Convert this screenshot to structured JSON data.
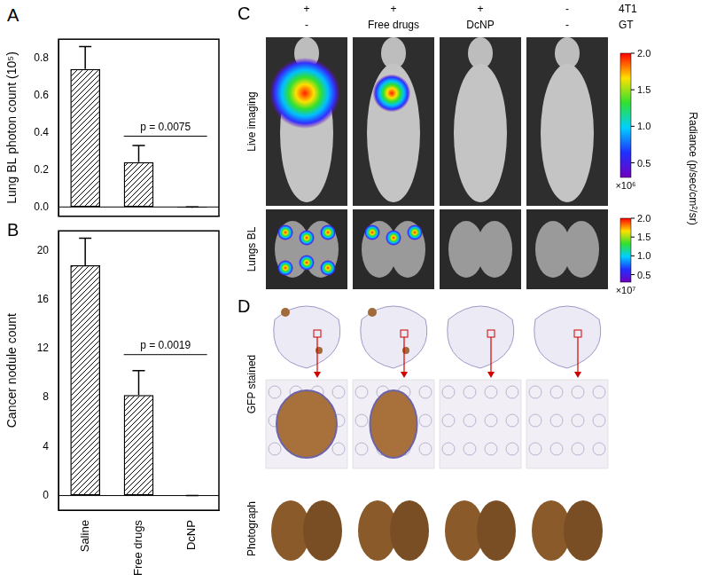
{
  "chart_data": [
    {
      "type": "bar",
      "title": "A",
      "categories": [
        null,
        null,
        null
      ],
      "values": [
        0.74,
        0.24,
        -0.005
      ],
      "errors": [
        0.12,
        0.09,
        0.005
      ],
      "color": "#000000",
      "y_label": "Lung BL photon count (10⁵)",
      "ylim": [
        -0.05,
        0.9
      ],
      "yticks": [
        {
          "value": 0,
          "label": "0.0"
        },
        0.2,
        0.4,
        0.6,
        0.8
      ],
      "tick_labels": "y",
      "grid": false,
      "annotations": [
        {
          "text": "p = 0.0075",
          "from": 1,
          "to": 2,
          "value": 0.38
        }
      ]
    },
    {
      "type": "bar",
      "title": "B",
      "categories": [
        "Saline",
        "Free drugs",
        "DcNP"
      ],
      "values": [
        18.8,
        8.2,
        0
      ],
      "errors": [
        2.2,
        2.0,
        0
      ],
      "color": "#000000",
      "y_label": "Cancer nodule count",
      "ylim": [
        -1.2,
        21.6
      ],
      "yticks": [
        0,
        4,
        8,
        12,
        16,
        20
      ],
      "grid": false,
      "annotations": [
        {
          "text": "p = 0.0019",
          "from": 1,
          "to": 2,
          "value": 11.5
        }
      ]
    }
  ],
  "panels": [
    {
      "label": "C",
      "conditions": {
        "rows": [
          "4T1",
          "GT"
        ],
        "columns": [
          [
            "+",
            "-"
          ],
          [
            "+",
            "Free drugs"
          ],
          [
            "+",
            "DcNP"
          ],
          [
            "-",
            "-"
          ]
        ]
      },
      "image_rows": [
        "Live imaging",
        "Lungs BL"
      ],
      "colorbar_title": "Radiance (p/sec/cm²/sr)",
      "colorbars": [
        {
          "range": [
            0.3,
            2.0
          ],
          "ticks": [
            0.5,
            {
              "value": 1.0,
              "label": "1.0"
            },
            1.5,
            {
              "value": 2.0,
              "label": "2.0"
            }
          ],
          "multiplier": "×10⁶"
        },
        {
          "range": [
            0.3,
            2.0
          ],
          "ticks": [
            0.5,
            {
              "value": 1.0,
              "label": "1.0"
            },
            1.5,
            {
              "value": 2.0,
              "label": "2.0"
            }
          ],
          "multiplier": "×10⁷"
        }
      ]
    },
    {
      "label": "D",
      "image_rows": [
        "GFP stained",
        "Photograph"
      ]
    }
  ]
}
